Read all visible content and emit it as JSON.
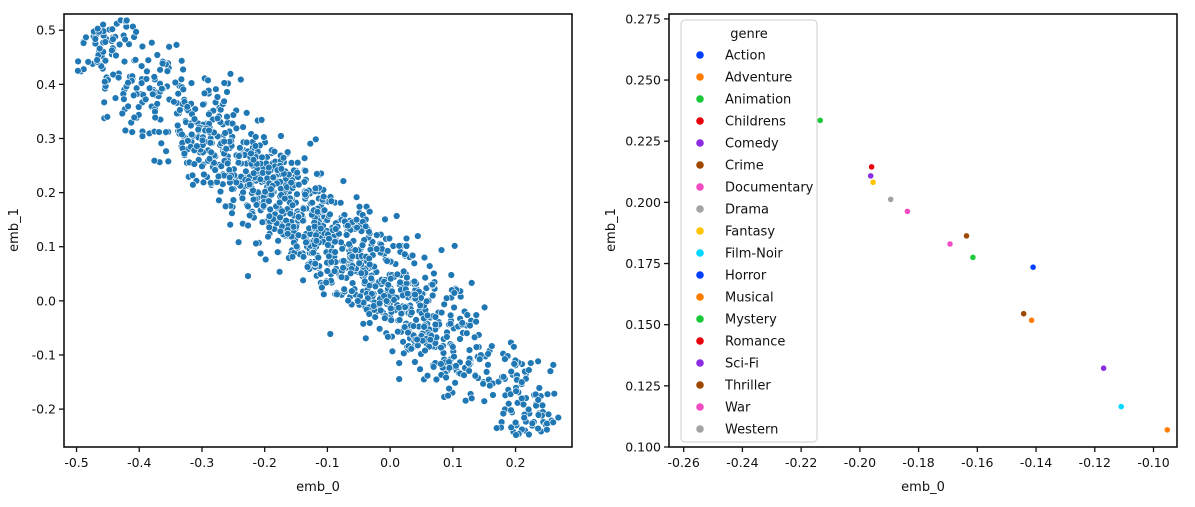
{
  "chart_data": [
    {
      "type": "scatter",
      "xlabel": "emb_0",
      "ylabel": "emb_1",
      "xlim": [
        -0.52,
        0.29
      ],
      "ylim": [
        -0.27,
        0.53
      ],
      "xticks": [
        -0.5,
        -0.4,
        -0.3,
        -0.2,
        -0.1,
        0.0,
        0.1,
        0.2
      ],
      "xtick_labels": [
        "-0.5",
        "-0.4",
        "-0.3",
        "-0.2",
        "-0.1",
        "0.0",
        "0.1",
        "0.2"
      ],
      "yticks": [
        -0.2,
        -0.1,
        0.0,
        0.1,
        0.2,
        0.3,
        0.4,
        0.5
      ],
      "ytick_labels": [
        "-0.2",
        "-0.1",
        "0.0",
        "0.1",
        "0.2",
        "0.3",
        "0.4",
        "0.5"
      ],
      "grid": false,
      "color": "#1f77b4",
      "point_count": 1400,
      "distribution": {
        "trend_start": [
          -0.45,
          0.46
        ],
        "trend_end": [
          0.22,
          -0.2
        ],
        "perpendicular_spread": 0.04
      },
      "points": [
        {
          "x": -0.485,
          "y": 0.487
        },
        {
          "x": -0.463,
          "y": 0.466
        },
        {
          "x": -0.455,
          "y": 0.405
        },
        {
          "x": -0.443,
          "y": 0.502
        },
        {
          "x": -0.42,
          "y": 0.518
        },
        {
          "x": -0.418,
          "y": 0.403
        },
        {
          "x": -0.405,
          "y": 0.497
        },
        {
          "x": -0.395,
          "y": 0.47
        },
        {
          "x": -0.38,
          "y": 0.477
        },
        {
          "x": 0.09,
          "y": 0.005
        },
        {
          "x": 0.1,
          "y": -0.085
        },
        {
          "x": 0.105,
          "y": -0.12
        },
        {
          "x": 0.125,
          "y": -0.115
        },
        {
          "x": 0.13,
          "y": -0.18
        },
        {
          "x": 0.17,
          "y": -0.235
        },
        {
          "x": 0.2,
          "y": -0.225
        },
        {
          "x": 0.21,
          "y": -0.15
        },
        {
          "x": 0.25,
          "y": -0.238
        }
      ]
    },
    {
      "type": "scatter",
      "xlabel": "emb_0",
      "ylabel": "emb_1",
      "xlim": [
        -0.265,
        -0.092
      ],
      "ylim": [
        0.1,
        0.277
      ],
      "xticks": [
        -0.26,
        -0.24,
        -0.22,
        -0.2,
        -0.18,
        -0.16,
        -0.14,
        -0.12,
        -0.1
      ],
      "xtick_labels": [
        "-0.26",
        "-0.24",
        "-0.22",
        "-0.20",
        "-0.18",
        "-0.16",
        "-0.14",
        "-0.12",
        "-0.10"
      ],
      "yticks": [
        0.1,
        0.125,
        0.15,
        0.175,
        0.2,
        0.225,
        0.25,
        0.275
      ],
      "ytick_labels": [
        "0.100",
        "0.125",
        "0.150",
        "0.175",
        "0.200",
        "0.225",
        "0.250",
        "0.275"
      ],
      "grid": false,
      "legend": {
        "title": "genre",
        "position": "upper-left",
        "entries": [
          {
            "label": "Action",
            "color": "#023eff"
          },
          {
            "label": "Adventure",
            "color": "#ff7c00"
          },
          {
            "label": "Animation",
            "color": "#1ac938"
          },
          {
            "label": "Childrens",
            "color": "#e8000b"
          },
          {
            "label": "Comedy",
            "color": "#8b2be2"
          },
          {
            "label": "Crime",
            "color": "#9f4800"
          },
          {
            "label": "Documentary",
            "color": "#f14cc1"
          },
          {
            "label": "Drama",
            "color": "#a3a3a3"
          },
          {
            "label": "Fantasy",
            "color": "#ffc400"
          },
          {
            "label": "Film-Noir",
            "color": "#00d7ff"
          },
          {
            "label": "Horror",
            "color": "#023eff"
          },
          {
            "label": "Musical",
            "color": "#ff7c00"
          },
          {
            "label": "Mystery",
            "color": "#1ac938"
          },
          {
            "label": "Romance",
            "color": "#e8000b"
          },
          {
            "label": "Sci-Fi",
            "color": "#8b2be2"
          },
          {
            "label": "Thriller",
            "color": "#9f4800"
          },
          {
            "label": "War",
            "color": "#f14cc1"
          },
          {
            "label": "Western",
            "color": "#a3a3a3"
          }
        ]
      },
      "points": [
        {
          "genre": "Action",
          "x": -0.141,
          "y": 0.1735
        },
        {
          "genre": "Adventure",
          "x": -0.1415,
          "y": 0.1518
        },
        {
          "genre": "Animation",
          "x": -0.1615,
          "y": 0.1775
        },
        {
          "genre": "Childrens",
          "x": -0.2135,
          "y": 0.2335
        },
        {
          "genre": "Comedy",
          "x": -0.1963,
          "y": 0.2108
        },
        {
          "genre": "Crime",
          "x": -0.1637,
          "y": 0.1863
        },
        {
          "genre": "Documentary",
          "x": -0.1838,
          "y": 0.1963
        },
        {
          "genre": "Drama",
          "x": -0.1895,
          "y": 0.2012
        },
        {
          "genre": "Fantasy",
          "x": -0.1955,
          "y": 0.2082
        },
        {
          "genre": "Film-Noir",
          "x": -0.111,
          "y": 0.1165
        },
        {
          "genre": "Horror",
          "x": -0.196,
          "y": 0.2145
        },
        {
          "genre": "Musical",
          "x": -0.0953,
          "y": 0.107
        },
        {
          "genre": "Mystery",
          "x": -0.2135,
          "y": 0.2335
        },
        {
          "genre": "Romance",
          "x": -0.196,
          "y": 0.2145
        },
        {
          "genre": "Sci-Fi",
          "x": -0.117,
          "y": 0.1322
        },
        {
          "genre": "Thriller",
          "x": -0.1442,
          "y": 0.1545
        },
        {
          "genre": "War",
          "x": -0.1693,
          "y": 0.183
        },
        {
          "genre": "Western",
          "x": -0.1895,
          "y": 0.2012
        }
      ]
    }
  ]
}
